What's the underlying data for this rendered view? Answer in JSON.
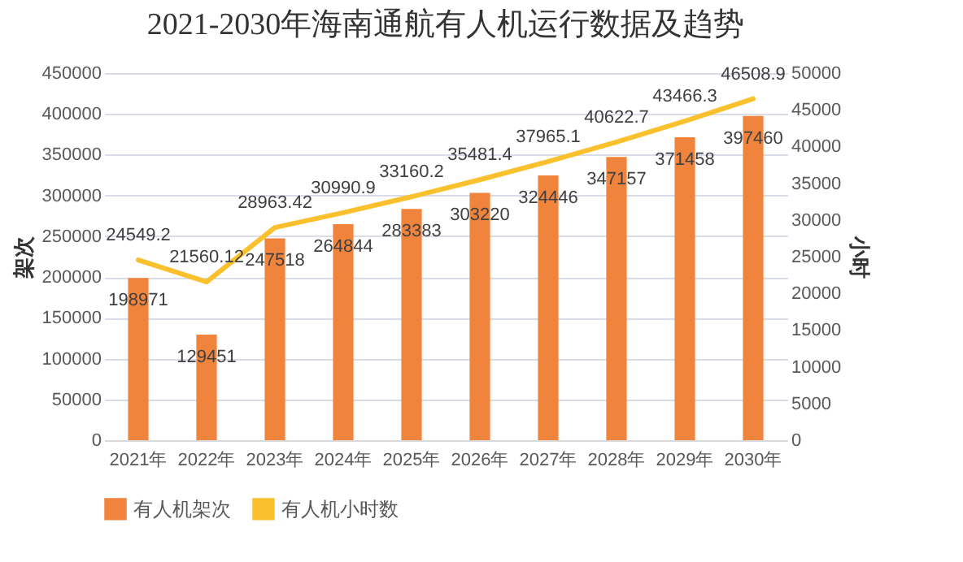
{
  "chart_data": {
    "type": "bar",
    "title": "2021-2030年海南通航有人机运行数据及趋势",
    "categories": [
      "2021年",
      "2022年",
      "2023年",
      "2024年",
      "2025年",
      "2026年",
      "2027年",
      "2028年",
      "2029年",
      "2030年"
    ],
    "series": [
      {
        "name": "有人机架次",
        "type": "bar",
        "color": "#f0843c",
        "values": [
          198971,
          129451,
          247518,
          264844,
          283383,
          303220,
          324446,
          347157,
          371458,
          397460
        ]
      },
      {
        "name": "有人机小时数",
        "type": "line",
        "axis": "y2",
        "color": "#fbc02d",
        "values": [
          24549.2,
          21560.12,
          28963.42,
          30990.9,
          33160.2,
          35481.4,
          37965.1,
          40622.7,
          43466.3,
          46508.9
        ]
      }
    ],
    "ylabel": "架次",
    "y2label": "小时",
    "ylim": [
      0,
      450000
    ],
    "yticks": [
      0,
      50000,
      100000,
      150000,
      200000,
      250000,
      300000,
      350000,
      400000,
      450000
    ],
    "y2lim": [
      0,
      50000
    ],
    "y2ticks": [
      0,
      5000,
      10000,
      15000,
      20000,
      25000,
      30000,
      35000,
      40000,
      45000,
      50000
    ],
    "data_labels": true,
    "grid": "y",
    "legend": "bottom",
    "marker": "none",
    "line_style": "solid"
  }
}
